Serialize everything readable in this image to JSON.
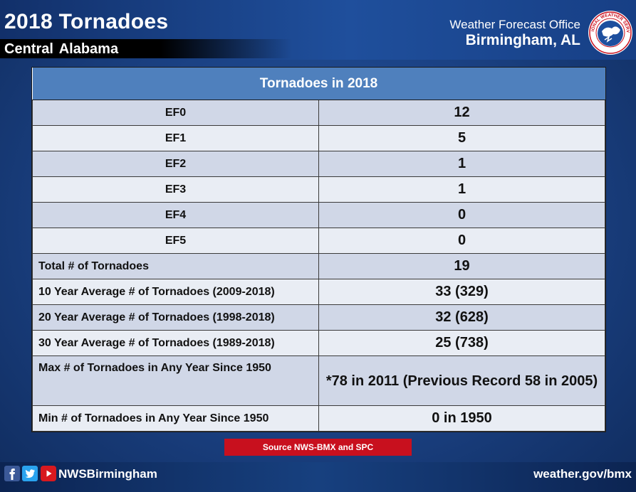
{
  "header": {
    "title": "2018 Tornadoes",
    "subtitle": "Central Alabama",
    "office_line1": "Weather Forecast Office",
    "office_line2": "Birmingham, AL",
    "logo_icon": "nws-logo-icon",
    "logo_text": "NATIONAL WEATHER SERVICE"
  },
  "table": {
    "title": "Tornadoes in 2018",
    "rows": [
      {
        "label": "EF0",
        "value": "12"
      },
      {
        "label": "EF1",
        "value": "5"
      },
      {
        "label": "EF2",
        "value": "1"
      },
      {
        "label": "EF3",
        "value": "1"
      },
      {
        "label": "EF4",
        "value": "0"
      },
      {
        "label": "EF5",
        "value": "0"
      },
      {
        "label": "Total # of Tornadoes",
        "value": "19"
      },
      {
        "label": "10 Year Average # of Tornadoes (2009-2018)",
        "value": "33  (329)"
      },
      {
        "label": "20 Year Average # of Tornadoes (1998-2018)",
        "value": "32  (628)"
      },
      {
        "label": "30 Year Average # of Tornadoes (1989-2018)",
        "value": "25  (738)"
      },
      {
        "label": "Max # of Tornadoes in Any Year Since 1950",
        "value": "*78 in 2011  (Previous Record 58 in 2005)"
      },
      {
        "label": "Min # of Tornadoes in Any Year Since 1950",
        "value": "0 in 1950"
      }
    ]
  },
  "source": "Source NWS-BMX and SPC",
  "footer": {
    "handle": "NWSBirmingham",
    "website": "weather.gov/bmx",
    "icons": [
      "facebook-icon",
      "twitter-icon",
      "youtube-icon"
    ]
  },
  "colors": {
    "header_blue": "#1f4f9c",
    "table_header": "#4f80bd",
    "row_dark": "#d0d7e7",
    "row_light": "#e9edf4",
    "source_red": "#c8101e"
  }
}
